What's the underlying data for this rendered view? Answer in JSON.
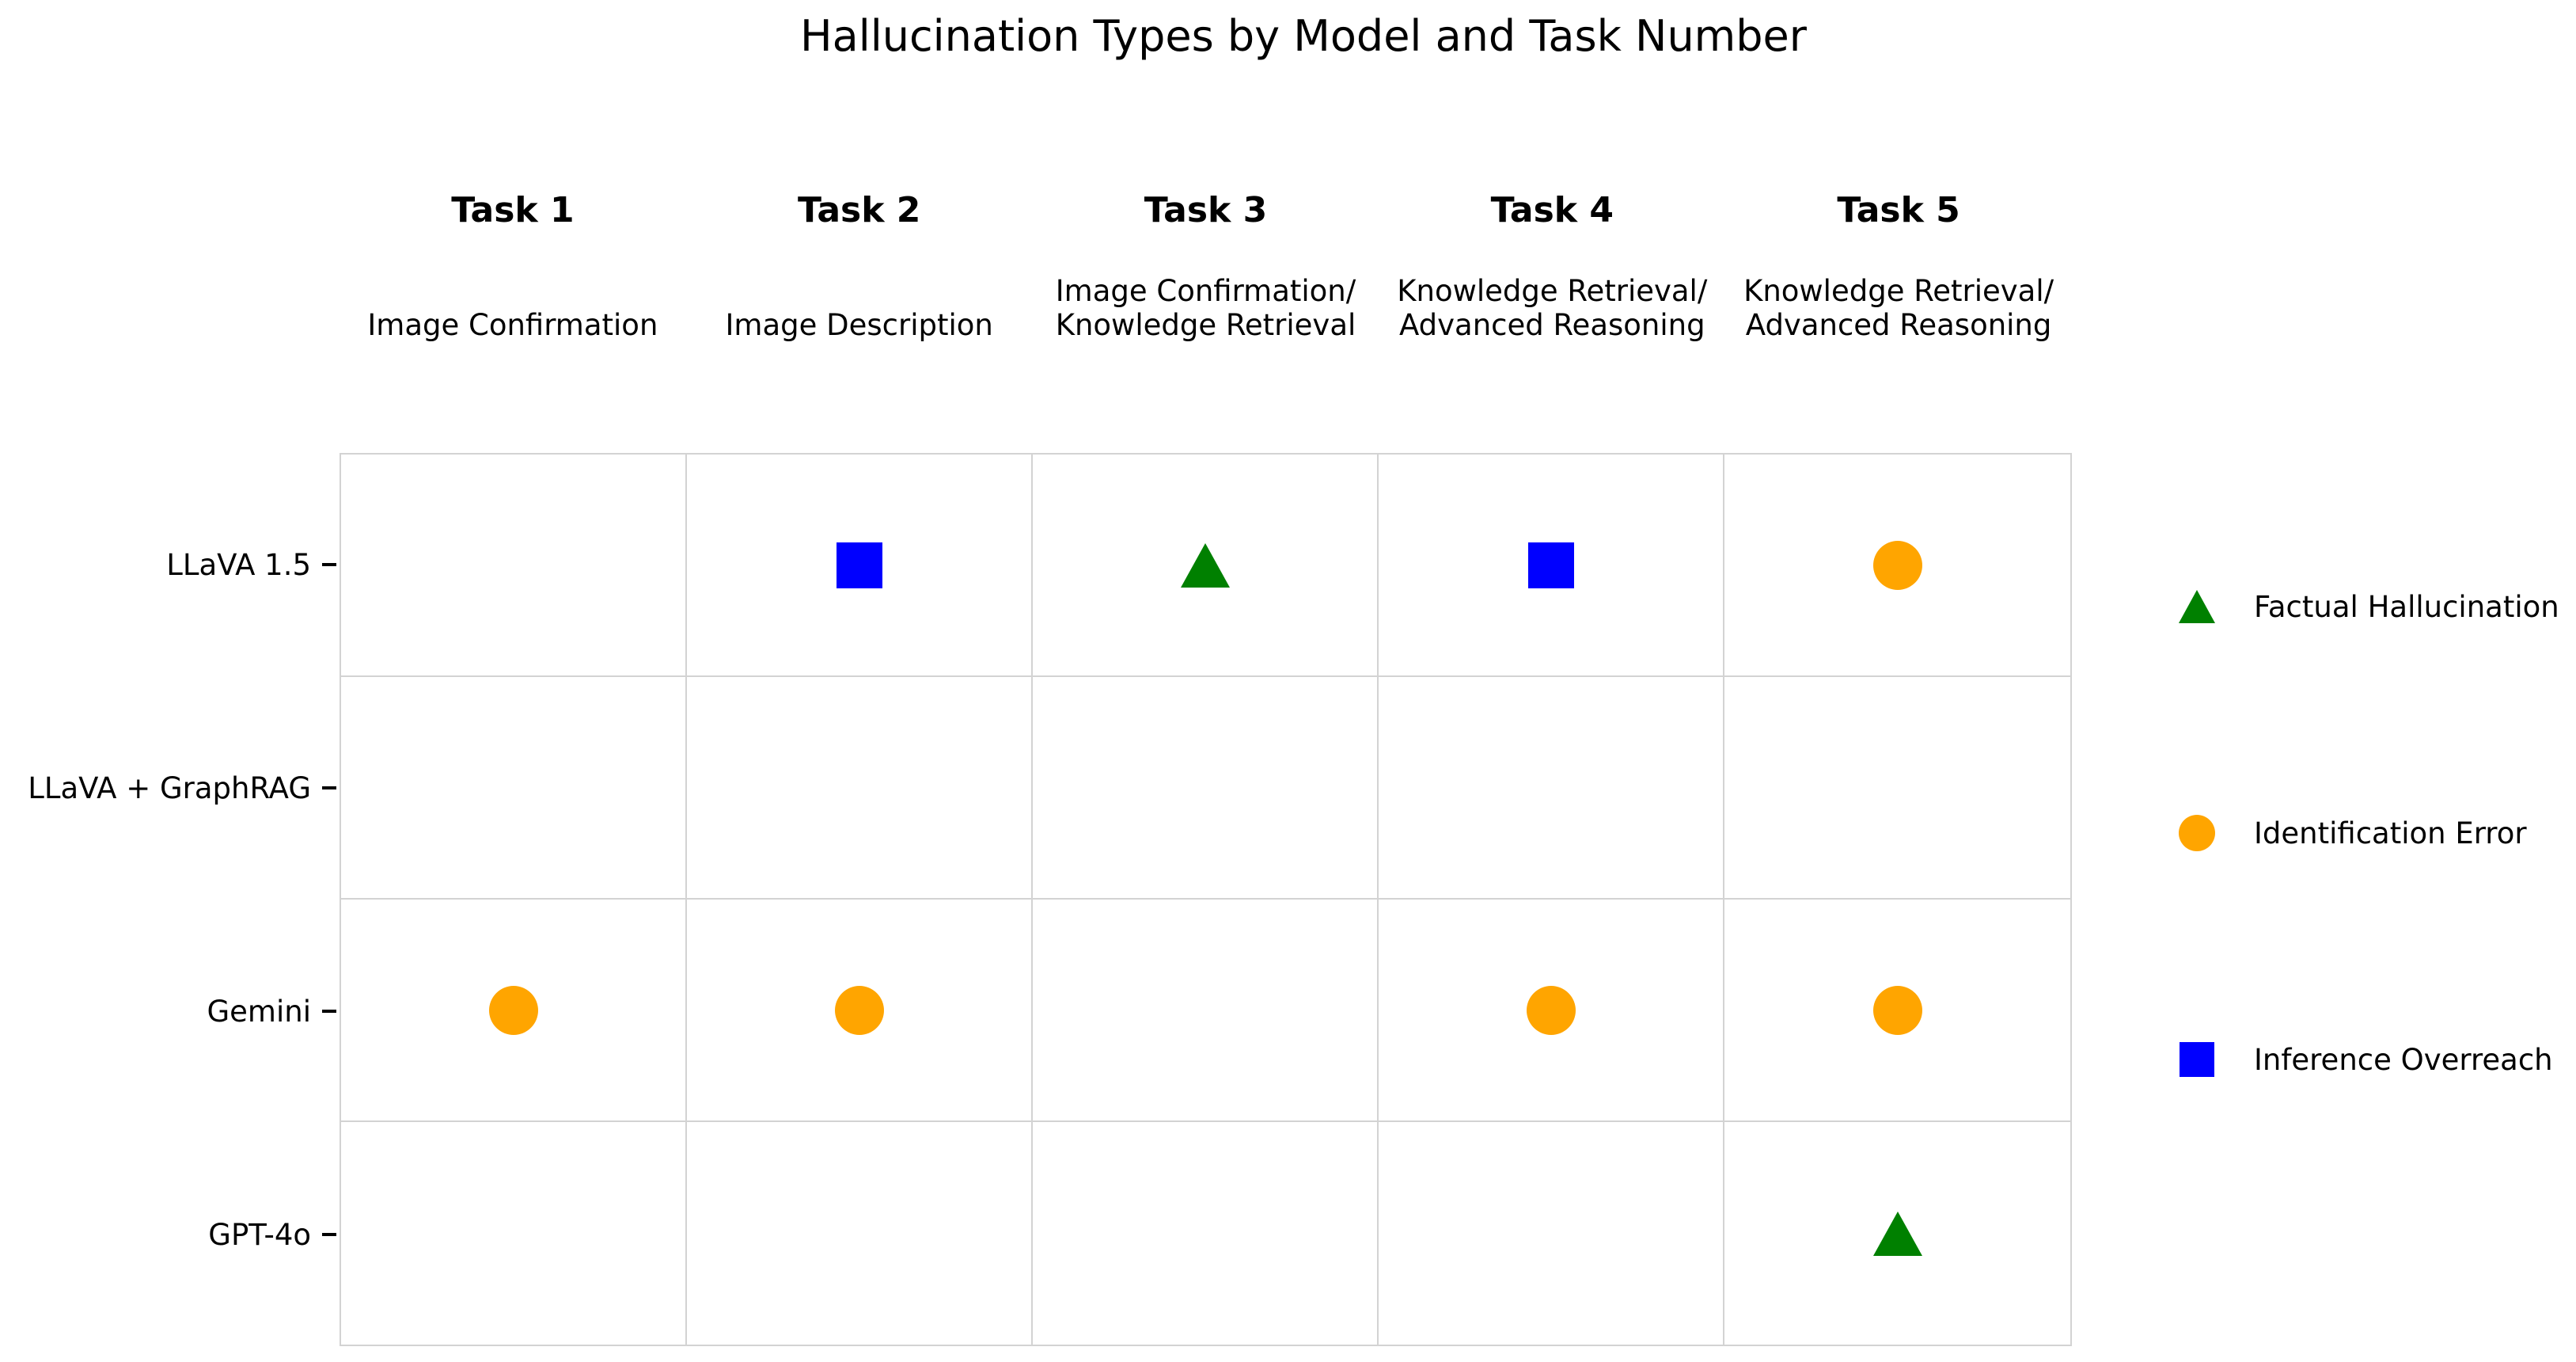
{
  "chart_data": {
    "type": "scatter",
    "title": "Hallucination Types by Model and Task Number",
    "columns": [
      {
        "task": "Task 1",
        "subtitle": "Image Confirmation"
      },
      {
        "task": "Task 2",
        "subtitle": "Image Description"
      },
      {
        "task": "Task 3",
        "subtitle": "Image Confirmation/\nKnowledge Retrieval"
      },
      {
        "task": "Task 4",
        "subtitle": "Knowledge Retrieval/\nAdvanced Reasoning"
      },
      {
        "task": "Task 5",
        "subtitle": "Knowledge Retrieval/\nAdvanced Reasoning"
      }
    ],
    "rows": [
      "LLaVA 1.5",
      "LLaVA + GraphRAG",
      "Gemini",
      "GPT-4o"
    ],
    "legend": [
      {
        "label": "Factual Hallucination",
        "marker": "triangle",
        "color": "#008000"
      },
      {
        "label": "Identification Error",
        "marker": "circle",
        "color": "#FFA500"
      },
      {
        "label": "Inference Overreach",
        "marker": "square",
        "color": "#0000FF"
      }
    ],
    "points": [
      {
        "row": "LLaVA 1.5",
        "col": "Task 2",
        "type": "Inference Overreach"
      },
      {
        "row": "LLaVA 1.5",
        "col": "Task 3",
        "type": "Factual Hallucination"
      },
      {
        "row": "LLaVA 1.5",
        "col": "Task 4",
        "type": "Inference Overreach"
      },
      {
        "row": "LLaVA 1.5",
        "col": "Task 5",
        "type": "Identification Error"
      },
      {
        "row": "Gemini",
        "col": "Task 1",
        "type": "Identification Error"
      },
      {
        "row": "Gemini",
        "col": "Task 2",
        "type": "Identification Error"
      },
      {
        "row": "Gemini",
        "col": "Task 4",
        "type": "Identification Error"
      },
      {
        "row": "Gemini",
        "col": "Task 5",
        "type": "Identification Error"
      },
      {
        "row": "GPT-4o",
        "col": "Task 5",
        "type": "Factual Hallucination"
      }
    ],
    "layout": {
      "grid_on": true,
      "grid_color": "#d3d3d3",
      "legend_position": "right",
      "empty_rows": [
        "LLaVA + GraphRAG"
      ]
    }
  }
}
